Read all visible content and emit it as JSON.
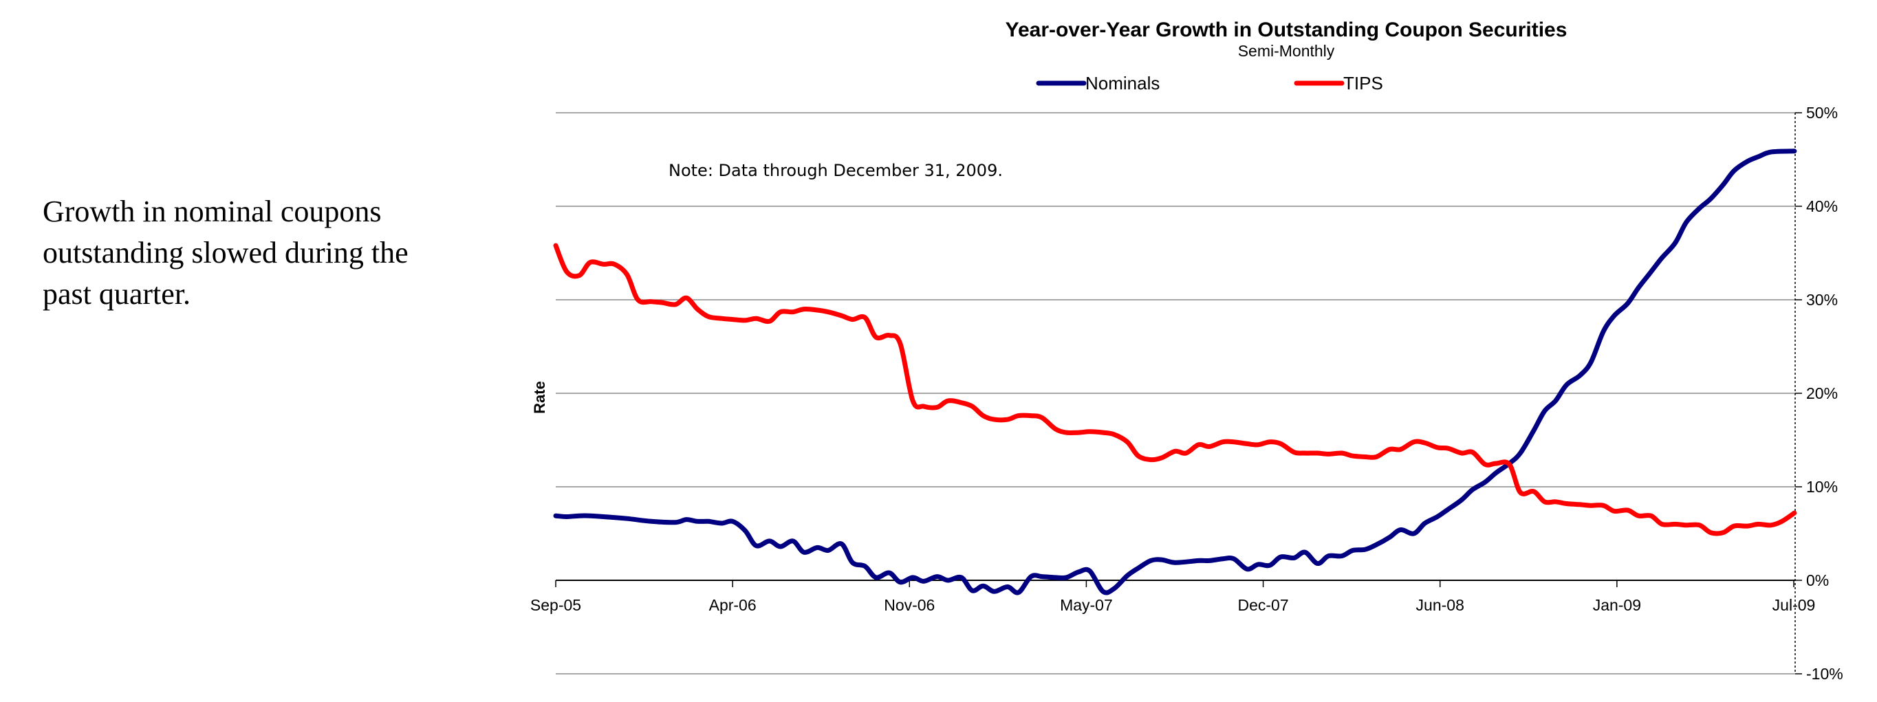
{
  "side_text": "Growth in nominal coupons outstanding slowed during the past quarter.",
  "chart_data": {
    "type": "line",
    "title": "Year-over-Year Growth in Outstanding Coupon Securities",
    "subtitle": "Semi-Monthly",
    "ylabel": "Rate",
    "note": "Note: Data through December 31, 2009.",
    "x_ticks": [
      "Sep-05",
      "Apr-06",
      "Nov-06",
      "May-07",
      "Dec-07",
      "Jun-08",
      "Jan-09",
      "Jul-09"
    ],
    "y_ticks": [
      "50%",
      "40%",
      "30%",
      "20%",
      "10%",
      "0%",
      "-10%"
    ],
    "ylim": [
      -10,
      50
    ],
    "y_unit": "%",
    "grid": true,
    "legend_position": "top",
    "x_range": [
      "2005-09-01",
      "2010-01-01"
    ],
    "series": [
      {
        "name": "Nominals",
        "color": "#000080",
        "points": [
          [
            "2005-09-01",
            6.9
          ],
          [
            "2005-09-15",
            6.8
          ],
          [
            "2005-10-01",
            6.9
          ],
          [
            "2005-10-15",
            6.9
          ],
          [
            "2005-11-01",
            6.8
          ],
          [
            "2005-12-01",
            6.6
          ],
          [
            "2006-01-01",
            6.3
          ],
          [
            "2006-02-01",
            6.2
          ],
          [
            "2006-02-15",
            6.5
          ],
          [
            "2006-03-01",
            6.3
          ],
          [
            "2006-03-15",
            6.3
          ],
          [
            "2006-04-01",
            6.1
          ],
          [
            "2006-04-15",
            6.3
          ],
          [
            "2006-05-01",
            5.3
          ],
          [
            "2006-05-15",
            3.7
          ],
          [
            "2006-06-01",
            4.2
          ],
          [
            "2006-06-15",
            3.6
          ],
          [
            "2006-07-01",
            4.2
          ],
          [
            "2006-07-15",
            3.0
          ],
          [
            "2006-08-01",
            3.5
          ],
          [
            "2006-08-15",
            3.2
          ],
          [
            "2006-09-01",
            3.9
          ],
          [
            "2006-09-15",
            1.9
          ],
          [
            "2006-10-01",
            1.5
          ],
          [
            "2006-10-15",
            0.3
          ],
          [
            "2006-11-01",
            0.8
          ],
          [
            "2006-11-15",
            -0.2
          ],
          [
            "2006-12-01",
            0.3
          ],
          [
            "2006-12-15",
            -0.1
          ],
          [
            "2007-01-01",
            0.4
          ],
          [
            "2007-01-15",
            0.0
          ],
          [
            "2007-02-01",
            0.3
          ],
          [
            "2007-02-15",
            -1.1
          ],
          [
            "2007-03-01",
            -0.6
          ],
          [
            "2007-03-15",
            -1.2
          ],
          [
            "2007-04-01",
            -0.7
          ],
          [
            "2007-04-15",
            -1.3
          ],
          [
            "2007-05-01",
            0.4
          ],
          [
            "2007-05-15",
            0.4
          ],
          [
            "2007-06-01",
            0.3
          ],
          [
            "2007-06-15",
            0.3
          ],
          [
            "2007-07-01",
            0.9
          ],
          [
            "2007-07-15",
            1.0
          ],
          [
            "2007-08-01",
            -1.2
          ],
          [
            "2007-08-15",
            -0.9
          ],
          [
            "2007-09-01",
            0.5
          ],
          [
            "2007-09-15",
            1.3
          ],
          [
            "2007-10-01",
            2.1
          ],
          [
            "2007-10-15",
            2.2
          ],
          [
            "2007-11-01",
            1.9
          ],
          [
            "2007-12-01",
            2.1
          ],
          [
            "2007-12-15",
            2.1
          ],
          [
            "2008-01-01",
            2.3
          ],
          [
            "2008-01-15",
            2.3
          ],
          [
            "2008-02-01",
            1.2
          ],
          [
            "2008-02-15",
            1.7
          ],
          [
            "2008-03-01",
            1.6
          ],
          [
            "2008-03-15",
            2.5
          ],
          [
            "2008-04-01",
            2.4
          ],
          [
            "2008-04-15",
            3.0
          ],
          [
            "2008-05-01",
            1.8
          ],
          [
            "2008-05-15",
            2.6
          ],
          [
            "2008-06-01",
            2.6
          ],
          [
            "2008-06-15",
            3.2
          ],
          [
            "2008-07-01",
            3.3
          ],
          [
            "2008-07-15",
            3.8
          ],
          [
            "2008-08-01",
            4.6
          ],
          [
            "2008-08-15",
            5.4
          ],
          [
            "2008-09-01",
            5.0
          ],
          [
            "2008-09-15",
            6.1
          ],
          [
            "2008-10-01",
            6.8
          ],
          [
            "2008-10-15",
            7.6
          ],
          [
            "2008-11-01",
            8.6
          ],
          [
            "2008-11-15",
            9.7
          ],
          [
            "2008-12-01",
            10.5
          ],
          [
            "2008-12-15",
            11.5
          ],
          [
            "2009-01-01",
            12.5
          ],
          [
            "2009-01-15",
            13.6
          ],
          [
            "2009-02-01",
            16.0
          ],
          [
            "2009-02-15",
            18.1
          ],
          [
            "2009-03-01",
            19.2
          ],
          [
            "2009-03-15",
            20.9
          ],
          [
            "2009-04-01",
            21.9
          ],
          [
            "2009-04-15",
            23.3
          ],
          [
            "2009-05-01",
            26.6
          ],
          [
            "2009-05-15",
            28.3
          ],
          [
            "2009-06-01",
            29.6
          ],
          [
            "2009-06-15",
            31.3
          ],
          [
            "2009-07-01",
            33.0
          ],
          [
            "2009-07-15",
            34.5
          ],
          [
            "2009-08-01",
            36.1
          ],
          [
            "2009-08-15",
            38.3
          ],
          [
            "2009-09-01",
            39.8
          ],
          [
            "2009-09-15",
            40.8
          ],
          [
            "2009-10-01",
            42.3
          ],
          [
            "2009-10-15",
            43.8
          ],
          [
            "2009-11-01",
            44.8
          ],
          [
            "2009-11-15",
            45.3
          ],
          [
            "2009-12-01",
            45.8
          ],
          [
            "2009-12-31",
            45.9
          ]
        ]
      },
      {
        "name": "TIPS",
        "color": "#ff0000",
        "points": [
          [
            "2005-09-01",
            35.8
          ],
          [
            "2005-09-15",
            33.0
          ],
          [
            "2005-10-01",
            32.6
          ],
          [
            "2005-10-15",
            34.0
          ],
          [
            "2005-11-01",
            33.8
          ],
          [
            "2005-11-15",
            33.8
          ],
          [
            "2005-12-01",
            32.7
          ],
          [
            "2005-12-15",
            30.0
          ],
          [
            "2006-01-01",
            29.8
          ],
          [
            "2006-01-15",
            29.7
          ],
          [
            "2006-02-01",
            29.5
          ],
          [
            "2006-02-15",
            30.2
          ],
          [
            "2006-03-01",
            29.0
          ],
          [
            "2006-03-15",
            28.2
          ],
          [
            "2006-04-01",
            28.0
          ],
          [
            "2006-04-15",
            27.9
          ],
          [
            "2006-05-01",
            27.8
          ],
          [
            "2006-05-15",
            28.0
          ],
          [
            "2006-06-01",
            27.7
          ],
          [
            "2006-06-15",
            28.7
          ],
          [
            "2006-07-01",
            28.7
          ],
          [
            "2006-07-15",
            29.0
          ],
          [
            "2006-08-01",
            28.9
          ],
          [
            "2006-08-15",
            28.7
          ],
          [
            "2006-09-01",
            28.3
          ],
          [
            "2006-09-15",
            27.9
          ],
          [
            "2006-10-01",
            28.1
          ],
          [
            "2006-10-15",
            26.0
          ],
          [
            "2006-11-01",
            26.2
          ],
          [
            "2006-11-15",
            25.3
          ],
          [
            "2006-12-01",
            19.2
          ],
          [
            "2006-12-15",
            18.6
          ],
          [
            "2007-01-01",
            18.5
          ],
          [
            "2007-01-15",
            19.2
          ],
          [
            "2007-02-01",
            19.0
          ],
          [
            "2007-02-15",
            18.6
          ],
          [
            "2007-03-01",
            17.6
          ],
          [
            "2007-03-15",
            17.2
          ],
          [
            "2007-04-01",
            17.2
          ],
          [
            "2007-04-15",
            17.6
          ],
          [
            "2007-05-01",
            17.6
          ],
          [
            "2007-05-15",
            17.4
          ],
          [
            "2007-06-01",
            16.2
          ],
          [
            "2007-06-15",
            15.8
          ],
          [
            "2007-07-01",
            15.8
          ],
          [
            "2007-07-15",
            15.9
          ],
          [
            "2007-08-01",
            15.8
          ],
          [
            "2007-08-15",
            15.6
          ],
          [
            "2007-09-01",
            14.8
          ],
          [
            "2007-09-15",
            13.3
          ],
          [
            "2007-10-01",
            12.9
          ],
          [
            "2007-10-15",
            13.1
          ],
          [
            "2007-11-01",
            13.8
          ],
          [
            "2007-11-15",
            13.6
          ],
          [
            "2007-12-01",
            14.5
          ],
          [
            "2007-12-15",
            14.3
          ],
          [
            "2008-01-01",
            14.8
          ],
          [
            "2008-01-15",
            14.8
          ],
          [
            "2008-02-01",
            14.6
          ],
          [
            "2008-02-15",
            14.5
          ],
          [
            "2008-03-01",
            14.8
          ],
          [
            "2008-03-15",
            14.6
          ],
          [
            "2008-04-01",
            13.7
          ],
          [
            "2008-04-15",
            13.6
          ],
          [
            "2008-05-01",
            13.6
          ],
          [
            "2008-05-15",
            13.5
          ],
          [
            "2008-06-01",
            13.6
          ],
          [
            "2008-06-15",
            13.3
          ],
          [
            "2008-07-01",
            13.2
          ],
          [
            "2008-07-15",
            13.2
          ],
          [
            "2008-08-01",
            14.0
          ],
          [
            "2008-08-15",
            14.0
          ],
          [
            "2008-09-01",
            14.8
          ],
          [
            "2008-09-15",
            14.7
          ],
          [
            "2008-10-01",
            14.2
          ],
          [
            "2008-10-15",
            14.1
          ],
          [
            "2008-11-01",
            13.6
          ],
          [
            "2008-11-15",
            13.7
          ],
          [
            "2008-12-01",
            12.4
          ],
          [
            "2008-12-15",
            12.5
          ],
          [
            "2009-01-01",
            12.4
          ],
          [
            "2009-01-15",
            9.4
          ],
          [
            "2009-02-01",
            9.5
          ],
          [
            "2009-02-15",
            8.4
          ],
          [
            "2009-03-01",
            8.4
          ],
          [
            "2009-03-15",
            8.2
          ],
          [
            "2009-04-01",
            8.1
          ],
          [
            "2009-04-15",
            8.0
          ],
          [
            "2009-05-01",
            8.0
          ],
          [
            "2009-05-15",
            7.4
          ],
          [
            "2009-06-01",
            7.5
          ],
          [
            "2009-06-15",
            6.9
          ],
          [
            "2009-07-01",
            6.9
          ],
          [
            "2009-07-15",
            6.0
          ],
          [
            "2009-08-01",
            6.0
          ],
          [
            "2009-08-15",
            5.9
          ],
          [
            "2009-09-01",
            5.9
          ],
          [
            "2009-09-15",
            5.1
          ],
          [
            "2009-10-01",
            5.1
          ],
          [
            "2009-10-15",
            5.8
          ],
          [
            "2009-11-01",
            5.8
          ],
          [
            "2009-11-15",
            6.0
          ],
          [
            "2009-12-01",
            5.9
          ],
          [
            "2009-12-15",
            6.3
          ],
          [
            "2009-12-31",
            7.2
          ]
        ]
      }
    ]
  }
}
